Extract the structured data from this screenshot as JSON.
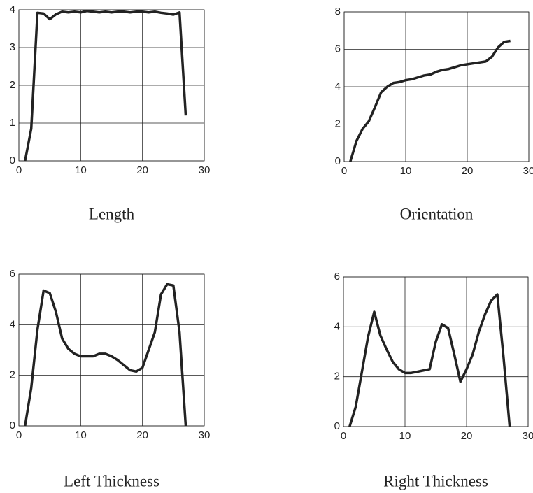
{
  "chart_data": [
    {
      "type": "line",
      "title": "Length",
      "color": "#222222",
      "grid": true,
      "x": [
        1,
        2,
        3,
        4,
        5,
        6,
        7,
        8,
        9,
        10,
        11,
        12,
        13,
        14,
        15,
        16,
        17,
        18,
        19,
        20,
        21,
        22,
        23,
        24,
        25,
        26,
        27
      ],
      "values": [
        0,
        0.85,
        3.92,
        3.9,
        3.75,
        3.88,
        3.95,
        3.93,
        3.95,
        3.93,
        3.97,
        3.95,
        3.93,
        3.95,
        3.93,
        3.95,
        3.95,
        3.93,
        3.95,
        3.95,
        3.93,
        3.95,
        3.92,
        3.9,
        3.87,
        3.93,
        1.2
      ],
      "xlim": [
        0,
        30
      ],
      "ylim": [
        0,
        4
      ],
      "xticks": [
        0,
        10,
        20,
        30
      ],
      "yticks": [
        0,
        1,
        2,
        3,
        4
      ]
    },
    {
      "type": "line",
      "title": "Orientation",
      "color": "#222222",
      "grid": true,
      "x": [
        1,
        2,
        3,
        4,
        5,
        6,
        7,
        8,
        9,
        10,
        11,
        12,
        13,
        14,
        15,
        16,
        17,
        18,
        19,
        20,
        21,
        22,
        23,
        24,
        25,
        26,
        27
      ],
      "values": [
        0,
        1.1,
        1.75,
        2.15,
        2.9,
        3.7,
        4.0,
        4.2,
        4.25,
        4.35,
        4.4,
        4.5,
        4.6,
        4.65,
        4.8,
        4.9,
        4.95,
        5.05,
        5.15,
        5.2,
        5.25,
        5.3,
        5.35,
        5.6,
        6.1,
        6.4,
        6.45
      ],
      "xlim": [
        0,
        30
      ],
      "ylim": [
        0,
        8
      ],
      "xticks": [
        0,
        10,
        20,
        30
      ],
      "yticks": [
        0,
        2,
        4,
        6,
        8
      ]
    },
    {
      "type": "line",
      "title": "Left Thickness",
      "color": "#222222",
      "grid": true,
      "x": [
        1,
        2,
        3,
        4,
        5,
        6,
        7,
        8,
        9,
        10,
        11,
        12,
        13,
        14,
        15,
        16,
        17,
        18,
        19,
        20,
        21,
        22,
        23,
        24,
        25,
        26,
        27
      ],
      "values": [
        0,
        1.5,
        3.8,
        5.35,
        5.25,
        4.5,
        3.45,
        3.05,
        2.85,
        2.75,
        2.75,
        2.75,
        2.85,
        2.85,
        2.75,
        2.6,
        2.4,
        2.2,
        2.15,
        2.3,
        3.0,
        3.7,
        5.2,
        5.6,
        5.55,
        3.7,
        0
      ],
      "xlim": [
        0,
        30
      ],
      "ylim": [
        0,
        6
      ],
      "xticks": [
        0,
        10,
        20,
        30
      ],
      "yticks": [
        0,
        2,
        4,
        6
      ]
    },
    {
      "type": "line",
      "title": "Right Thickness",
      "color": "#222222",
      "grid": true,
      "x": [
        1,
        2,
        3,
        4,
        5,
        6,
        7,
        8,
        9,
        10,
        11,
        12,
        13,
        14,
        15,
        16,
        17,
        18,
        19,
        20,
        21,
        22,
        23,
        24,
        25,
        26,
        27
      ],
      "values": [
        0,
        0.8,
        2.2,
        3.6,
        4.6,
        3.65,
        3.1,
        2.6,
        2.3,
        2.15,
        2.15,
        2.2,
        2.25,
        2.3,
        3.4,
        4.1,
        3.95,
        2.9,
        1.8,
        2.3,
        2.9,
        3.8,
        4.5,
        5.05,
        5.3,
        2.8,
        0
      ],
      "xlim": [
        0,
        30
      ],
      "ylim": [
        0,
        6
      ],
      "xticks": [
        0,
        10,
        20,
        30
      ],
      "yticks": [
        0,
        2,
        4,
        6
      ]
    }
  ]
}
